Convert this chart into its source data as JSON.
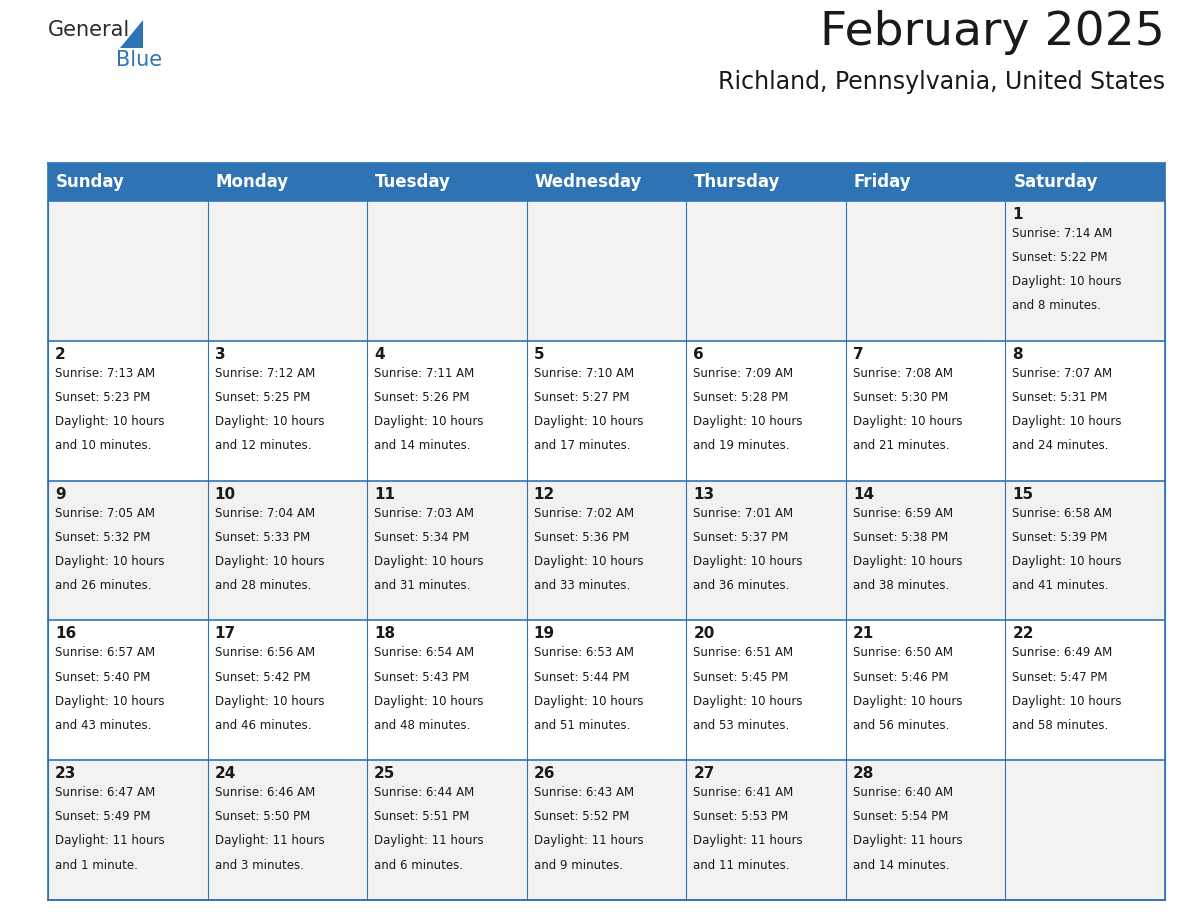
{
  "title": "February 2025",
  "subtitle": "Richland, Pennsylvania, United States",
  "header_bg_color": "#2E74B5",
  "header_text_color": "#FFFFFF",
  "cell_bg_even": "#F2F2F2",
  "cell_bg_odd": "#FFFFFF",
  "border_color": "#2E74B5",
  "day_headers": [
    "Sunday",
    "Monday",
    "Tuesday",
    "Wednesday",
    "Thursday",
    "Friday",
    "Saturday"
  ],
  "logo_text1": "General",
  "logo_text2": "Blue",
  "logo_color1": "#2B2B2B",
  "logo_color2": "#2E74B5",
  "title_color": "#1A1A1A",
  "text_color": "#1A1A1A",
  "title_fontsize": 34,
  "subtitle_fontsize": 17,
  "header_fontsize": 12,
  "day_num_fontsize": 11,
  "info_fontsize": 8.5,
  "calendar_data": [
    [
      null,
      null,
      null,
      null,
      null,
      null,
      {
        "day": 1,
        "sunrise": "7:14 AM",
        "sunset": "5:22 PM",
        "daylight": "10 hours and 8 minutes."
      }
    ],
    [
      {
        "day": 2,
        "sunrise": "7:13 AM",
        "sunset": "5:23 PM",
        "daylight": "10 hours and 10 minutes."
      },
      {
        "day": 3,
        "sunrise": "7:12 AM",
        "sunset": "5:25 PM",
        "daylight": "10 hours and 12 minutes."
      },
      {
        "day": 4,
        "sunrise": "7:11 AM",
        "sunset": "5:26 PM",
        "daylight": "10 hours and 14 minutes."
      },
      {
        "day": 5,
        "sunrise": "7:10 AM",
        "sunset": "5:27 PM",
        "daylight": "10 hours and 17 minutes."
      },
      {
        "day": 6,
        "sunrise": "7:09 AM",
        "sunset": "5:28 PM",
        "daylight": "10 hours and 19 minutes."
      },
      {
        "day": 7,
        "sunrise": "7:08 AM",
        "sunset": "5:30 PM",
        "daylight": "10 hours and 21 minutes."
      },
      {
        "day": 8,
        "sunrise": "7:07 AM",
        "sunset": "5:31 PM",
        "daylight": "10 hours and 24 minutes."
      }
    ],
    [
      {
        "day": 9,
        "sunrise": "7:05 AM",
        "sunset": "5:32 PM",
        "daylight": "10 hours and 26 minutes."
      },
      {
        "day": 10,
        "sunrise": "7:04 AM",
        "sunset": "5:33 PM",
        "daylight": "10 hours and 28 minutes."
      },
      {
        "day": 11,
        "sunrise": "7:03 AM",
        "sunset": "5:34 PM",
        "daylight": "10 hours and 31 minutes."
      },
      {
        "day": 12,
        "sunrise": "7:02 AM",
        "sunset": "5:36 PM",
        "daylight": "10 hours and 33 minutes."
      },
      {
        "day": 13,
        "sunrise": "7:01 AM",
        "sunset": "5:37 PM",
        "daylight": "10 hours and 36 minutes."
      },
      {
        "day": 14,
        "sunrise": "6:59 AM",
        "sunset": "5:38 PM",
        "daylight": "10 hours and 38 minutes."
      },
      {
        "day": 15,
        "sunrise": "6:58 AM",
        "sunset": "5:39 PM",
        "daylight": "10 hours and 41 minutes."
      }
    ],
    [
      {
        "day": 16,
        "sunrise": "6:57 AM",
        "sunset": "5:40 PM",
        "daylight": "10 hours and 43 minutes."
      },
      {
        "day": 17,
        "sunrise": "6:56 AM",
        "sunset": "5:42 PM",
        "daylight": "10 hours and 46 minutes."
      },
      {
        "day": 18,
        "sunrise": "6:54 AM",
        "sunset": "5:43 PM",
        "daylight": "10 hours and 48 minutes."
      },
      {
        "day": 19,
        "sunrise": "6:53 AM",
        "sunset": "5:44 PM",
        "daylight": "10 hours and 51 minutes."
      },
      {
        "day": 20,
        "sunrise": "6:51 AM",
        "sunset": "5:45 PM",
        "daylight": "10 hours and 53 minutes."
      },
      {
        "day": 21,
        "sunrise": "6:50 AM",
        "sunset": "5:46 PM",
        "daylight": "10 hours and 56 minutes."
      },
      {
        "day": 22,
        "sunrise": "6:49 AM",
        "sunset": "5:47 PM",
        "daylight": "10 hours and 58 minutes."
      }
    ],
    [
      {
        "day": 23,
        "sunrise": "6:47 AM",
        "sunset": "5:49 PM",
        "daylight": "11 hours and 1 minute."
      },
      {
        "day": 24,
        "sunrise": "6:46 AM",
        "sunset": "5:50 PM",
        "daylight": "11 hours and 3 minutes."
      },
      {
        "day": 25,
        "sunrise": "6:44 AM",
        "sunset": "5:51 PM",
        "daylight": "11 hours and 6 minutes."
      },
      {
        "day": 26,
        "sunrise": "6:43 AM",
        "sunset": "5:52 PM",
        "daylight": "11 hours and 9 minutes."
      },
      {
        "day": 27,
        "sunrise": "6:41 AM",
        "sunset": "5:53 PM",
        "daylight": "11 hours and 11 minutes."
      },
      {
        "day": 28,
        "sunrise": "6:40 AM",
        "sunset": "5:54 PM",
        "daylight": "11 hours and 14 minutes."
      },
      null
    ]
  ]
}
